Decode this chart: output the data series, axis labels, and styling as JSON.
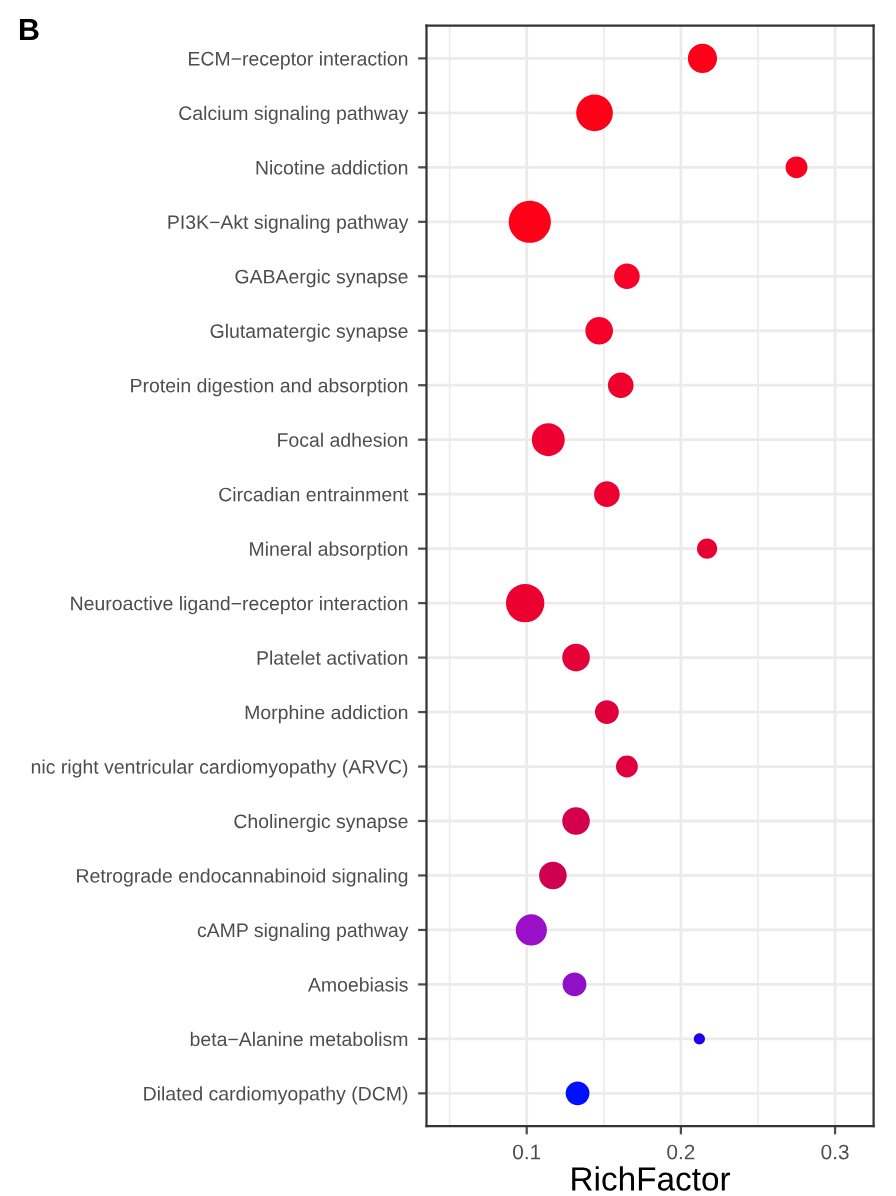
{
  "chart_data": {
    "type": "bubble",
    "title": "B",
    "orientation": "horizontal",
    "xlabel": "RichFactor",
    "categories": [
      "ECM−receptor interaction",
      "Calcium signaling pathway",
      "Nicotine addiction",
      "PI3K−Akt signaling pathway",
      "GABAergic synapse",
      "Glutamatergic synapse",
      "Protein digestion and absorption",
      "Focal adhesion",
      "Circadian entrainment",
      "Mineral absorption",
      "Neuroactive ligand−receptor interaction",
      "Platelet activation",
      "Morphine addiction",
      "nic right ventricular cardiomyopathy (ARVC)",
      "Cholinergic synapse",
      "Retrograde endocannabinoid signaling",
      "cAMP signaling pathway",
      "Amoebiasis",
      "beta−Alanine metabolism",
      "Dilated cardiomyopathy (DCM)"
    ],
    "values": [
      0.214,
      0.144,
      0.275,
      0.102,
      0.165,
      0.147,
      0.161,
      0.114,
      0.152,
      0.217,
      0.099,
      0.132,
      0.152,
      0.165,
      0.132,
      0.117,
      0.103,
      0.131,
      0.212,
      0.133
    ],
    "sizes": [
      0.48,
      0.76,
      0.27,
      1,
      0.37,
      0.43,
      0.37,
      0.61,
      0.37,
      0.23,
      0.83,
      0.43,
      0.32,
      0.27,
      0.43,
      0.43,
      0.55,
      0.32,
      0.07,
      0.32
    ],
    "colors": [
      "#ff0018",
      "#ff0018",
      "#f80020",
      "#ff0018",
      "#f80028",
      "#f40028",
      "#f0002c",
      "#ee0030",
      "#ec0030",
      "#e80034",
      "#ec0030",
      "#e40038",
      "#e0003c",
      "#e00040",
      "#d4004c",
      "#d00050",
      "#9a10c8",
      "#9010c8",
      "#2000f0",
      "#0010ff"
    ],
    "xlim": [
      0.035,
      0.325
    ],
    "xticks": [
      {
        "value": 0.05,
        "label": null
      },
      0.1,
      {
        "value": 0.15,
        "label": null
      },
      0.2,
      {
        "value": 0.25,
        "label": null
      },
      0.3
    ],
    "grid": true,
    "legend": false
  }
}
